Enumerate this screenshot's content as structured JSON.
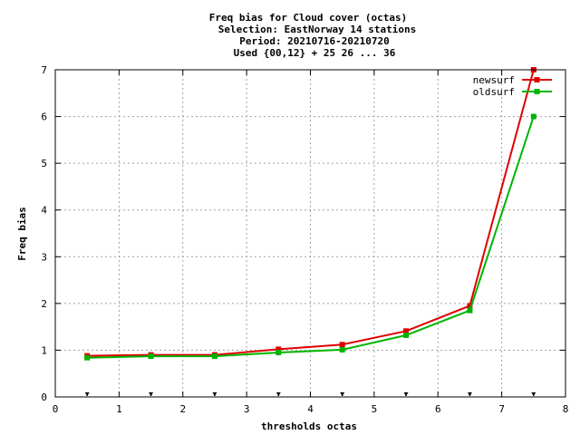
{
  "chart_data": {
    "type": "line",
    "title_lines": [
      "Freq bias  for Cloud cover (octas)",
      "Selection: EastNorway     14 stations",
      "Period: 20210716-20210720",
      "Used {00,12} + 25 26 ... 36"
    ],
    "xlabel": "thresholds octas",
    "ylabel": "Freq bias",
    "xlim": [
      0,
      8
    ],
    "ylim": [
      0,
      7
    ],
    "xticks": [
      "0",
      "1",
      "2",
      "3",
      "4",
      "5",
      "6",
      "7",
      "8"
    ],
    "yticks": [
      "0",
      "1",
      "2",
      "3",
      "4",
      "5",
      "6",
      "7"
    ],
    "grid": true,
    "legend_position": "top-right",
    "x": [
      0.5,
      1.5,
      2.5,
      3.5,
      4.5,
      5.5,
      6.5,
      7.5
    ],
    "series": [
      {
        "name": "newsurf",
        "color": "#e00000",
        "values": [
          0.88,
          0.9,
          0.9,
          1.02,
          1.12,
          1.41,
          1.95,
          7.0
        ]
      },
      {
        "name": "oldsurf",
        "color": "#00b400",
        "values": [
          0.84,
          0.87,
          0.87,
          0.95,
          1.01,
          1.32,
          1.85,
          6.0
        ]
      }
    ],
    "threshold_markers": [
      0.5,
      1.5,
      2.5,
      3.5,
      4.5,
      5.5,
      6.5,
      7.5
    ]
  }
}
